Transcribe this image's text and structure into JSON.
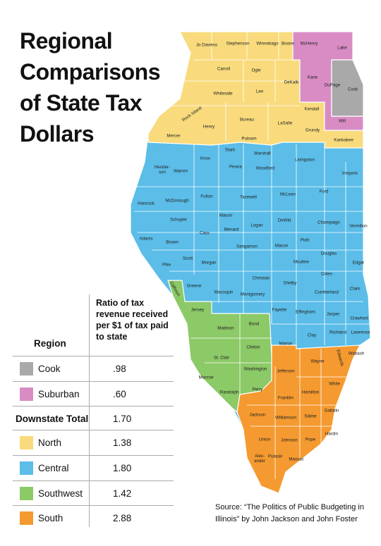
{
  "header": {
    "title": "Regional Comparisons of State Tax Dollars"
  },
  "table": {
    "headers": [
      "Region",
      "Ratio of tax revenue received per $1 of tax paid to state"
    ],
    "rows": [
      {
        "region": "Cook",
        "ratio": ".98",
        "color": "#a9a9a9"
      },
      {
        "region": "Suburban",
        "ratio": ".60",
        "color": "#d98cc4"
      },
      {
        "region": "Downstate Total",
        "ratio": "1.70"
      },
      {
        "region": "North",
        "ratio": "1.38",
        "color": "#f9db7d"
      },
      {
        "region": "Central",
        "ratio": "1.80",
        "color": "#5bbde8"
      },
      {
        "region": "Southwest",
        "ratio": "1.42",
        "color": "#8cc967"
      },
      {
        "region": "South",
        "ratio": "2.88",
        "color": "#f59a30"
      }
    ]
  },
  "map": {
    "counties": [
      "Jo Daviess",
      "Stephenson",
      "Winnebago",
      "Boone",
      "McHenry",
      "Lake",
      "Carroll",
      "Ogle",
      "DeKalb",
      "Kane",
      "DuPage",
      "Cook",
      "Whiteside",
      "Lee",
      "Rock Island",
      "Henry",
      "Bureau",
      "LaSalle",
      "Kendall",
      "Grundy",
      "Will",
      "Mercer",
      "Putnam",
      "Kankakee",
      "Stark",
      "Marshall",
      "Hender-son",
      "Warren",
      "Knox",
      "Peoria",
      "Woodford",
      "Livingston",
      "Iroquois",
      "Hancock",
      "McDonough",
      "Fulton",
      "Tazewell",
      "McLean",
      "Ford",
      "Schuyler",
      "Mason",
      "Menard",
      "Logan",
      "DeWitt",
      "Champaign",
      "Vermilion",
      "Cass",
      "Adams",
      "Brown",
      "Sangamon",
      "Macon",
      "Piatt",
      "Douglas",
      "Edgar",
      "Scott",
      "Morgan",
      "Pike",
      "Christian",
      "Moultrie",
      "Coles",
      "Shelby",
      "Clark",
      "Greene",
      "Macoupin",
      "Montgomery",
      "Cumberland",
      "Fayette",
      "Effingham",
      "Jasper",
      "Crawford",
      "Clay",
      "Richland",
      "Lawrence",
      "Marion",
      "Calhoun",
      "Jersey",
      "Madison",
      "Bond",
      "St. Clair",
      "Clinton",
      "Washington",
      "Monroe",
      "Randolph",
      "Jefferson",
      "Wayne",
      "Edwards",
      "Wabash",
      "Perry",
      "Franklin",
      "Hamilton",
      "White",
      "Jackson",
      "Williamson",
      "Saline",
      "Gallatin",
      "Union",
      "Johnson",
      "Pope",
      "Hardin",
      "Alex-ander",
      "Pulaski",
      "Massac"
    ]
  },
  "footer": {
    "source": "Source: “The Politics of Public Budgeting in Illinois” by John Jackson and John Foster"
  }
}
